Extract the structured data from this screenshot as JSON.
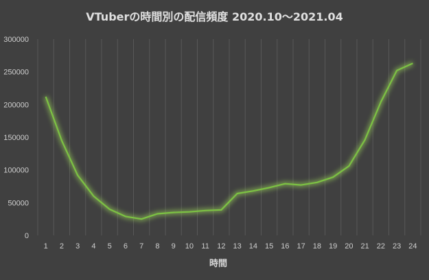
{
  "chart_data": {
    "type": "line",
    "title": "VTuberの時間別の配信頻度 2020.10～2021.04",
    "xlabel": "時間",
    "ylabel": "",
    "x": [
      1,
      2,
      3,
      4,
      5,
      6,
      7,
      8,
      9,
      10,
      11,
      12,
      13,
      14,
      15,
      16,
      17,
      18,
      19,
      20,
      21,
      22,
      23,
      24
    ],
    "series": [
      {
        "values": [
          212000,
          145000,
          92000,
          60000,
          40000,
          29000,
          25000,
          33000,
          35000,
          36000,
          38000,
          39000,
          64000,
          68000,
          73000,
          79000,
          77000,
          81000,
          89000,
          106000,
          146000,
          204000,
          252000,
          263000
        ]
      }
    ],
    "ylim": [
      0,
      300000
    ],
    "yticks": [
      0,
      50000,
      100000,
      150000,
      200000,
      250000,
      300000
    ],
    "ytick_labels": [
      "0",
      "50000",
      "100000",
      "150000",
      "200000",
      "250000",
      "300000"
    ],
    "xtick_labels": [
      "1",
      "2",
      "3",
      "4",
      "5",
      "6",
      "7",
      "8",
      "9",
      "10",
      "11",
      "12",
      "13",
      "14",
      "15",
      "16",
      "17",
      "18",
      "19",
      "20",
      "21",
      "22",
      "23",
      "24"
    ],
    "grid": "vertical",
    "colors": {
      "background": "#404040",
      "line": "#7cc243",
      "glow": "#9bd45a",
      "grid": "#585858",
      "text": "#cfcfcf"
    }
  }
}
